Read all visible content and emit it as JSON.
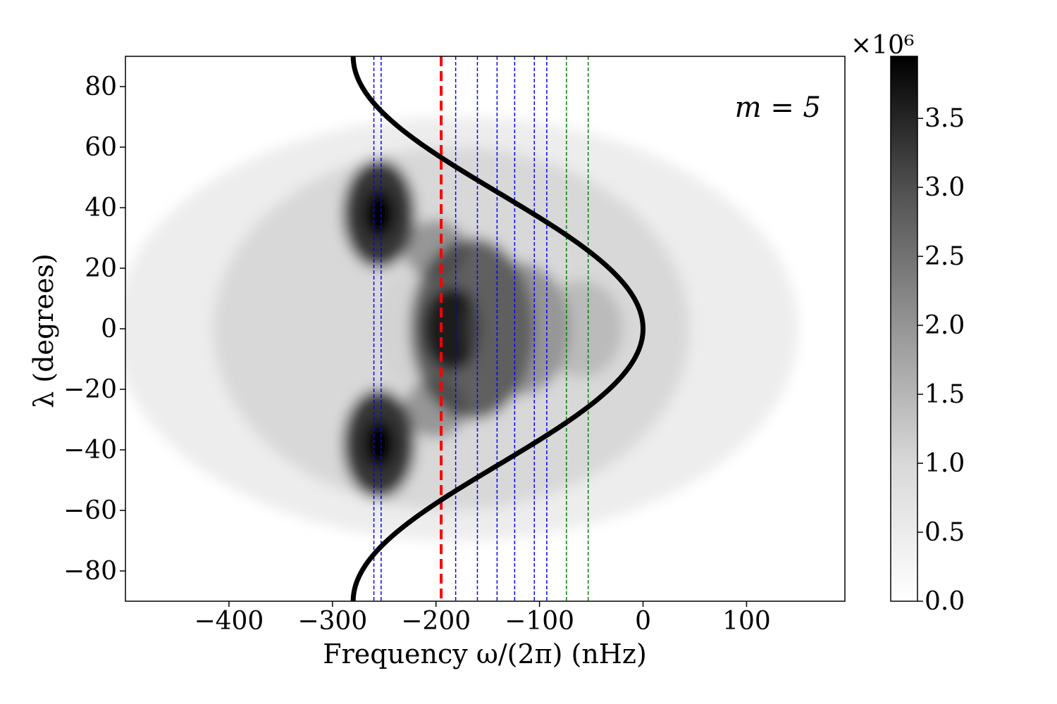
{
  "chart_data": {
    "type": "heatmap",
    "title": "",
    "xlabel": "Frequency ω/(2π) (nHz)",
    "ylabel": "λ (degrees)",
    "xlim": [
      -500,
      195
    ],
    "ylim": [
      -90,
      90
    ],
    "xticks": [
      -400,
      -300,
      -200,
      -100,
      0,
      100
    ],
    "xtick_labels": [
      "−400",
      "−300",
      "−200",
      "−100",
      "0",
      "100"
    ],
    "yticks": [
      -80,
      -60,
      -40,
      -20,
      0,
      20,
      40,
      60,
      80
    ],
    "ytick_labels": [
      "−80",
      "−60",
      "−40",
      "−20",
      "0",
      "20",
      "40",
      "60",
      "80"
    ],
    "annotation": "m = 5",
    "colormap": "Greys",
    "colorbar": {
      "range": [
        0,
        3.95
      ],
      "ticks": [
        0.0,
        0.5,
        1.0,
        1.5,
        2.0,
        2.5,
        3.0,
        3.5
      ],
      "tick_labels": [
        "0.0",
        "0.5",
        "1.0",
        "1.5",
        "2.0",
        "2.5",
        "3.0",
        "3.5"
      ],
      "multiplier": "×10⁶"
    },
    "intensity_peaks": [
      {
        "frequency": -255,
        "latitude": 38,
        "value": 3.9
      },
      {
        "frequency": -255,
        "latitude": -38,
        "value": 3.9
      },
      {
        "frequency": -180,
        "latitude": 0,
        "value": 3.8
      }
    ],
    "curve": {
      "name": "critical-latitude curve",
      "color": "#000000",
      "formula": "ω/(2π) = -280 · sin²(λ)",
      "frequency_at_equator": 0,
      "frequency_at_poles": -280
    },
    "vertical_lines": [
      {
        "x": -260,
        "color": "#0000ff",
        "style": "dashed"
      },
      {
        "x": -253,
        "color": "#0000ff",
        "style": "dashed"
      },
      {
        "x": -195,
        "color": "#ff0000",
        "style": "dashed-thick"
      },
      {
        "x": -181,
        "color": "#0000ff",
        "style": "dashed"
      },
      {
        "x": -160,
        "color": "#0000ff",
        "style": "dashed"
      },
      {
        "x": -141,
        "color": "#0000ff",
        "style": "dashed"
      },
      {
        "x": -124,
        "color": "#0000ff",
        "style": "dashed"
      },
      {
        "x": -105,
        "color": "#0000ff",
        "style": "dashed"
      },
      {
        "x": -93,
        "color": "#0000ff",
        "style": "dashed"
      },
      {
        "x": -74,
        "color": "#008000",
        "style": "dashed"
      },
      {
        "x": -53,
        "color": "#008000",
        "style": "dashed"
      }
    ]
  }
}
